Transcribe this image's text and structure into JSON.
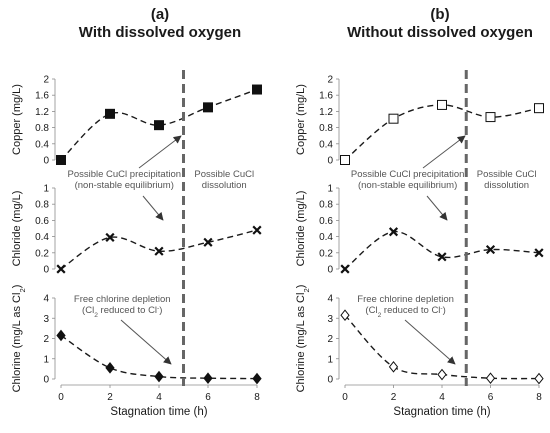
{
  "chart_data": [
    {
      "type": "scatter",
      "panel_label": "(a)",
      "title": "With dissolved oxygen",
      "marker_fill": "filled",
      "xlabel": "Stagnation time (h)",
      "xticks": [
        0,
        2,
        4,
        6,
        8
      ],
      "divider_x": 5,
      "subplots": [
        {
          "ylabel": "Copper (mg/L)",
          "ylim": [
            0,
            2
          ],
          "yticks": [
            "0",
            "0.4",
            "0.8",
            "1.2",
            "1.6",
            "2"
          ],
          "marker": "square",
          "x": [
            0,
            2,
            4,
            6,
            8
          ],
          "y": [
            0.0,
            1.14,
            0.86,
            1.3,
            1.74
          ],
          "annotations": {
            "left": [
              "Possible CuCl precipitation",
              "(non-stable equilibrium)"
            ],
            "right": [
              "Possible CuCl",
              "dissolution"
            ]
          }
        },
        {
          "ylabel": "Chloride (mg/L)",
          "ylim": [
            0,
            1
          ],
          "yticks": [
            "0",
            "0.2",
            "0.4",
            "0.6",
            "0.8",
            "1"
          ],
          "marker": "cross",
          "x": [
            0,
            2,
            4,
            6,
            8
          ],
          "y": [
            0.0,
            0.39,
            0.22,
            0.33,
            0.48
          ]
        },
        {
          "ylabel": "Chlorine (mg/L as Cl2)",
          "ylim": [
            0,
            4
          ],
          "yticks": [
            "0",
            "1",
            "2",
            "3",
            "4"
          ],
          "marker": "diamond",
          "x": [
            0,
            2,
            4,
            6,
            8
          ],
          "y": [
            2.15,
            0.55,
            0.12,
            0.04,
            0.02
          ],
          "annotations": {
            "left": [
              "Free chlorine depletion",
              "(Cl2 reduced to Cl-)"
            ]
          }
        }
      ]
    },
    {
      "type": "scatter",
      "panel_label": "(b)",
      "title": "Without dissolved oxygen",
      "marker_fill": "open",
      "xlabel": "Stagnation time (h)",
      "xticks": [
        0,
        2,
        4,
        6,
        8
      ],
      "divider_x": 5,
      "subplots": [
        {
          "ylabel": "Copper (mg/L)",
          "ylim": [
            0,
            2
          ],
          "yticks": [
            "0",
            "0.4",
            "0.8",
            "1.2",
            "1.6",
            "2"
          ],
          "marker": "square",
          "x": [
            0,
            2,
            4,
            6,
            8
          ],
          "y": [
            0.0,
            1.02,
            1.36,
            1.06,
            1.28
          ],
          "annotations": {
            "left": [
              "Possible CuCl precipitation",
              "(non-stable equilibrium)"
            ],
            "right": [
              "Possible CuCl",
              "dissolution"
            ]
          }
        },
        {
          "ylabel": "Chloride (mg/L)",
          "ylim": [
            0,
            1
          ],
          "yticks": [
            "0",
            "0.2",
            "0.4",
            "0.6",
            "0.8",
            "1"
          ],
          "marker": "cross",
          "x": [
            0,
            2,
            4,
            6,
            8
          ],
          "y": [
            0.0,
            0.46,
            0.15,
            0.24,
            0.2
          ]
        },
        {
          "ylabel": "Chlorine (mg/L as Cl2)",
          "ylim": [
            0,
            4
          ],
          "yticks": [
            "0",
            "1",
            "2",
            "3",
            "4"
          ],
          "marker": "diamond",
          "x": [
            0,
            2,
            4,
            6,
            8
          ],
          "y": [
            3.15,
            0.6,
            0.22,
            0.04,
            0.02
          ],
          "annotations": {
            "left": [
              "Free chlorine depletion",
              "(Cl2 reduced to Cl-)"
            ]
          }
        }
      ]
    }
  ]
}
